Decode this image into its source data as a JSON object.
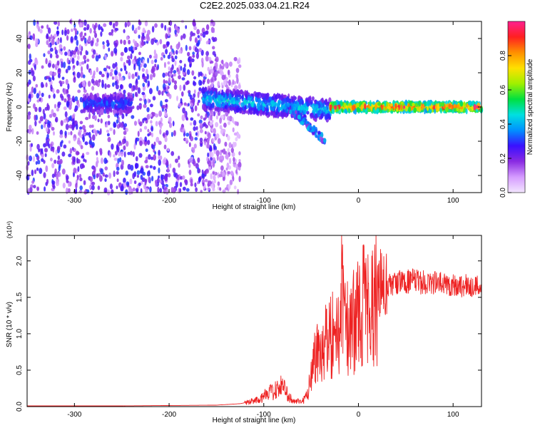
{
  "title": "C2E2.2025.033.04.21.R24",
  "chart_data": [
    {
      "type": "heatmap",
      "title": "C2E2.2025.033.04.21.R24",
      "xlabel": "Height of straight line (km)",
      "ylabel": "Frequency (Hz)",
      "xlim": [
        -350,
        130
      ],
      "ylim": [
        -50,
        50
      ],
      "xticks": [
        "-300",
        "-200",
        "-100",
        "0",
        "100"
      ],
      "xtick_values": [
        -300,
        -200,
        -100,
        0,
        100
      ],
      "yticks": [
        "-40",
        "-20",
        "0",
        "20",
        "40"
      ],
      "ytick_values": [
        -40,
        -20,
        0,
        20,
        40
      ],
      "colorbar": {
        "label": "Normalized spectral amplitude",
        "range": [
          0,
          1
        ],
        "ticks": [
          "0.0",
          "0.2",
          "0.4",
          "0.6",
          "0.8"
        ],
        "tick_values": [
          0,
          0.2,
          0.4,
          0.6,
          0.8
        ],
        "colors": [
          "#f3e6ff",
          "#d59cff",
          "#8a2be2",
          "#3a10ff",
          "#0090ff",
          "#00e0e0",
          "#00e040",
          "#a0f000",
          "#ffe000",
          "#ff9000",
          "#ff2020",
          "#ff2090"
        ]
      },
      "regions": [
        {
          "x_range": [
            -350,
            -150
          ],
          "freq_range": [
            -50,
            50
          ],
          "description": "broadband noise",
          "amplitude": 0.15
        },
        {
          "x_range": [
            -160,
            -125
          ],
          "freq_range": [
            -50,
            28
          ],
          "description": "sparse noise",
          "amplitude": 0.08
        },
        {
          "x_range": [
            -290,
            -240
          ],
          "freq_center": 2,
          "freq_halfwidth": 5,
          "amplitude": 0.35
        },
        {
          "x_range": [
            -165,
            -30
          ],
          "freq_center_start": 5,
          "freq_center_end": -2,
          "freq_halfwidth": 6,
          "amplitude": 0.45
        },
        {
          "x_range": [
            -75,
            -35
          ],
          "branch_freq_start": 0,
          "branch_freq_end": -20,
          "amplitude": 0.25
        },
        {
          "x_range": [
            -30,
            130
          ],
          "freq_center": 0,
          "freq_halfwidth": 2.5,
          "amplitude": 0.95
        }
      ]
    },
    {
      "type": "line",
      "xlabel": "Height of straight line (km)",
      "ylabel": "SNR (10 * v/v)",
      "multiplier": "(x10⁴)",
      "xlim": [
        -350,
        130
      ],
      "ylim": [
        0,
        2.35
      ],
      "xticks": [
        "-300",
        "-200",
        "-100",
        "0",
        "100"
      ],
      "xtick_values": [
        -300,
        -200,
        -100,
        0,
        100
      ],
      "yticks": [
        "0.0",
        "0.5",
        "1.0",
        "1.5",
        "2.0"
      ],
      "ytick_values": [
        0,
        0.5,
        1.0,
        1.5,
        2.0
      ],
      "color": "#ee2222",
      "series": [
        {
          "x": [
            -350,
            -300,
            -250,
            -200,
            -150,
            -125,
            -110,
            -100,
            -90,
            -80,
            -75,
            -70,
            -60,
            -55,
            -50,
            -45,
            -40,
            -35,
            -30,
            -25,
            -20,
            -17,
            -15,
            -12,
            -10,
            -5,
            0,
            5,
            10,
            15,
            20,
            25,
            30,
            40,
            50,
            60,
            70,
            80,
            90,
            100,
            110,
            120,
            130
          ],
          "y": [
            0.01,
            0.01,
            0.01,
            0.015,
            0.02,
            0.04,
            0.08,
            0.14,
            0.22,
            0.28,
            0.18,
            0.08,
            0.06,
            0.15,
            0.45,
            0.75,
            0.85,
            0.95,
            1.0,
            1.05,
            0.95,
            2.3,
            1.05,
            1.1,
            1.15,
            1.2,
            1.3,
            1.45,
            1.5,
            1.55,
            1.58,
            1.62,
            1.65,
            1.7,
            1.72,
            1.72,
            1.7,
            1.7,
            1.68,
            1.67,
            1.66,
            1.65,
            1.65
          ]
        }
      ]
    }
  ]
}
